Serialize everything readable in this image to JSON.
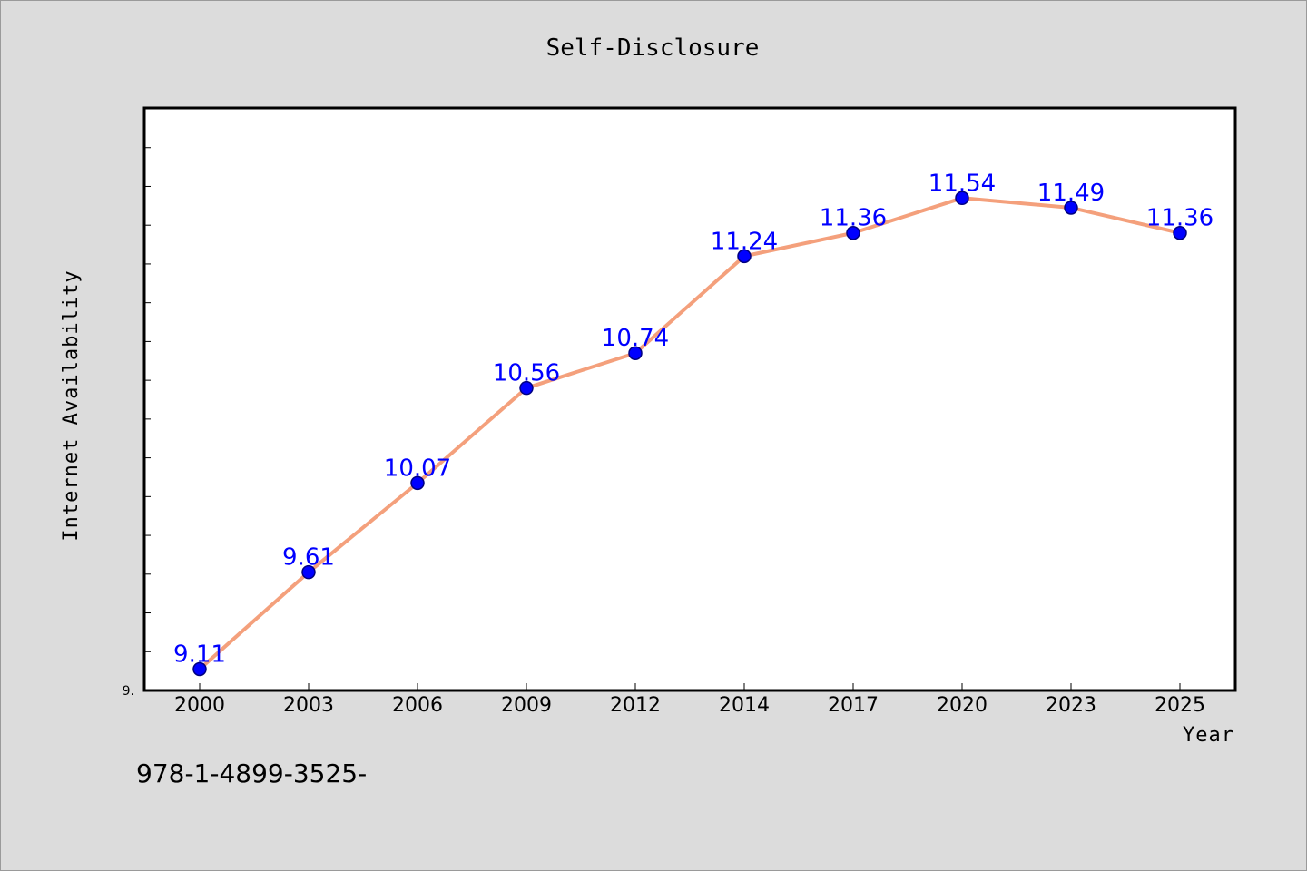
{
  "chart_data": {
    "type": "line",
    "title": "Self-Disclosure",
    "xlabel": "Year",
    "ylabel": "Internet Availability",
    "categories": [
      "2000",
      "2003",
      "2006",
      "2009",
      "2012",
      "2014",
      "2017",
      "2020",
      "2023",
      "2025"
    ],
    "series": [
      {
        "values": [
          9.11,
          9.61,
          10.07,
          10.56,
          10.74,
          11.24,
          11.36,
          11.54,
          11.49,
          11.36
        ],
        "data_labels": [
          "9.11",
          "9.61",
          "10.07",
          "10.56",
          "10.74",
          "11.24",
          "11.36",
          "11.54",
          "11.49",
          "11.36"
        ]
      }
    ],
    "ylim": [
      9.0,
      12.0
    ],
    "y_tick_labels": [
      "9."
    ],
    "grid": false,
    "legend": "none",
    "colors": {
      "line": "#f4a07c",
      "marker": "#0000ff",
      "marker_edge": "#000080",
      "data_label": "#0000ff",
      "plot_background": "#ffffff",
      "figure_background": "#dcdcdc"
    }
  },
  "footer": {
    "text": "978-1-4899-3525-"
  }
}
